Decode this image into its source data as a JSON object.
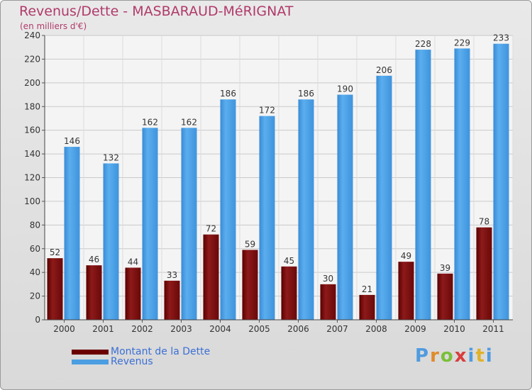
{
  "chart_data": {
    "type": "bar",
    "title": "Revenus/Dette - MASBARAUD-MéRIGNAT",
    "subtitle": "(en milliers d'€)",
    "categories": [
      "2000",
      "2001",
      "2002",
      "2003",
      "2004",
      "2005",
      "2006",
      "2007",
      "2008",
      "2009",
      "2010",
      "2011"
    ],
    "series": [
      {
        "name": "Montant de la Dette",
        "color": "#7a1010",
        "values": [
          52,
          46,
          44,
          33,
          72,
          59,
          45,
          30,
          21,
          49,
          39,
          78
        ]
      },
      {
        "name": "Revenus",
        "color": "#4b9ee2",
        "values": [
          146,
          132,
          162,
          162,
          186,
          172,
          186,
          190,
          206,
          228,
          229,
          233
        ]
      }
    ],
    "ylim": [
      0,
      240
    ],
    "yticks": [
      0,
      20,
      40,
      60,
      80,
      100,
      120,
      140,
      160,
      180,
      200,
      220,
      240
    ],
    "grid": true,
    "legend": "bottom-left",
    "xlabel": "",
    "ylabel": ""
  },
  "logo": {
    "text": "Proxiti"
  }
}
